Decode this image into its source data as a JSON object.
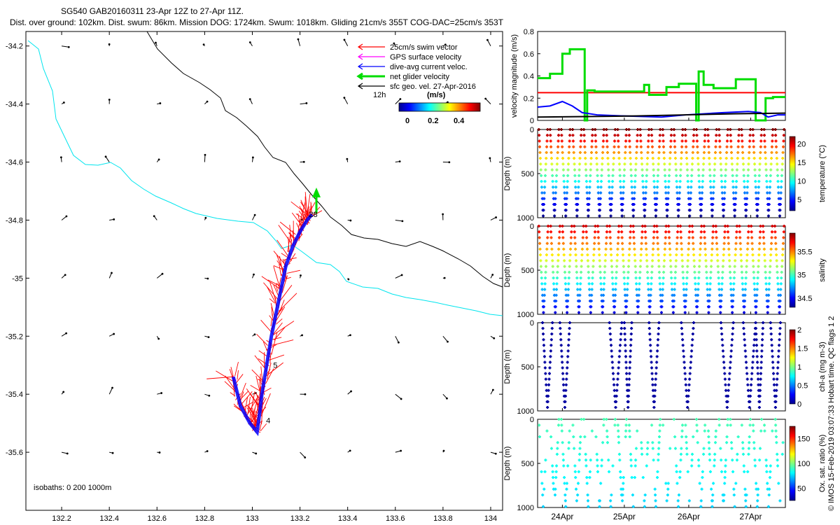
{
  "header": {
    "title": "SG540 GAB20160311 23-Apr 12Z to 27-Apr 11Z.",
    "subtitle": "Dist. over ground: 102km. Dist. swum: 86km. Mission DOG: 1724km. Swum: 1018km. Gliding 21cm/s 355T COG-DAC=25cm/s 353T"
  },
  "credit": "© IMOS 15-Feb-2019 03:07:33 Hobart time. QC flags 1  2",
  "colors": {
    "swim": "#ff0000",
    "gps": "#ff00ff",
    "dac": "#0000ff",
    "net": "#00dd00",
    "sfc": "#000000",
    "isobath200": "#000000",
    "isobath1000": "#00e5ee"
  },
  "chart_data": [
    {
      "type": "map",
      "xticks": [
        "132.2",
        "132.4",
        "132.6",
        "132.8",
        "133",
        "133.2",
        "133.4",
        "133.6",
        "133.8",
        "134"
      ],
      "yticks": [
        "-34.2",
        "-34.4",
        "-34.6",
        "-34.8",
        "-35",
        "-35.2",
        "-35.4",
        "-35.6"
      ],
      "xlim": [
        132.05,
        134.05
      ],
      "ylim": [
        -35.8,
        -34.15
      ],
      "legend": [
        {
          "label": "25cm/s swim vector",
          "color": "#ff0000"
        },
        {
          "label": "GPS surface velocity",
          "color": "#ff00ff"
        },
        {
          "label": "dive-avg current veloc.",
          "color": "#0000ff"
        },
        {
          "label": "net glider velocity",
          "color": "#00dd00"
        },
        {
          "label": "sfc geo. vel. 27-Apr-2016",
          "color": "#000000"
        }
      ],
      "legend_extra": "12h",
      "colorbar": {
        "title": "(m/s)",
        "ticks": [
          "0",
          "0.2",
          "0.4"
        ]
      },
      "isobath_note": "isobaths: 0   200  1000m",
      "track_labels": [
        {
          "text": "28",
          "lon": 133.22,
          "lat": -34.78
        },
        {
          "text": "5",
          "lon": 133.07,
          "lat": -35.3
        },
        {
          "text": "4",
          "lon": 133.04,
          "lat": -35.49
        }
      ],
      "track": [
        [
          132.92,
          -35.34
        ],
        [
          132.95,
          -35.44
        ],
        [
          132.99,
          -35.5
        ],
        [
          133.02,
          -35.53
        ],
        [
          133.03,
          -35.47
        ],
        [
          133.04,
          -35.4
        ],
        [
          133.06,
          -35.3
        ],
        [
          133.08,
          -35.2
        ],
        [
          133.1,
          -35.12
        ],
        [
          133.12,
          -35.04
        ],
        [
          133.14,
          -34.96
        ],
        [
          133.17,
          -34.89
        ],
        [
          133.2,
          -34.84
        ],
        [
          133.23,
          -34.8
        ],
        [
          133.25,
          -34.78
        ]
      ]
    },
    {
      "type": "line",
      "ylabel": "velocity magnitude (m/s)",
      "yticks": [
        "0",
        "0.2",
        "0.4",
        "0.6",
        "0.8"
      ],
      "ylim": [
        0,
        0.8
      ],
      "threshold": 0.25,
      "series": [
        {
          "color": "#00dd00",
          "x": [
            0,
            0.05,
            0.05,
            0.1,
            0.1,
            0.13,
            0.13,
            0.19,
            0.19,
            0.2,
            0.2,
            0.23,
            0.23,
            0.43,
            0.43,
            0.45,
            0.45,
            0.52,
            0.52,
            0.57,
            0.57,
            0.64,
            0.64,
            0.65,
            0.65,
            0.67,
            0.67,
            0.71,
            0.71,
            0.8,
            0.8,
            0.88,
            0.88,
            0.92,
            0.92,
            0.95,
            0.95,
            1
          ],
          "y": [
            0.38,
            0.38,
            0.42,
            0.42,
            0.6,
            0.6,
            0.64,
            0.64,
            0.0,
            0.0,
            0.27,
            0.27,
            0.26,
            0.26,
            0.32,
            0.32,
            0.23,
            0.23,
            0.3,
            0.3,
            0.33,
            0.33,
            0.0,
            0.0,
            0.44,
            0.44,
            0.32,
            0.32,
            0.29,
            0.29,
            0.37,
            0.37,
            0.0,
            0.0,
            0.2,
            0.2,
            0.21,
            0.21
          ]
        },
        {
          "color": "#0000ff",
          "x": [
            0,
            0.05,
            0.1,
            0.14,
            0.18,
            0.24,
            0.35,
            0.5,
            0.6,
            0.75,
            0.85,
            0.9,
            0.93,
            0.97,
            1
          ],
          "y": [
            0.12,
            0.13,
            0.17,
            0.13,
            0.07,
            0.05,
            0.04,
            0.03,
            0.05,
            0.07,
            0.08,
            0.07,
            0.03,
            0.05,
            0.05
          ]
        },
        {
          "color": "#000000",
          "x": [
            0,
            0.2,
            0.4,
            0.6,
            0.8,
            1
          ],
          "y": [
            0.03,
            0.035,
            0.04,
            0.05,
            0.06,
            0.065
          ]
        }
      ]
    },
    {
      "type": "scatter",
      "ylabel": "Depth (m)",
      "yticks": [
        "0",
        "500",
        "1000"
      ],
      "ylim": [
        1000,
        0
      ],
      "cbar_label": "temperature (°C)",
      "cbar_ticks": [
        "5",
        "10",
        "15",
        "20"
      ],
      "cbar_range": [
        2,
        22
      ],
      "n_dives": 22,
      "max_depth": 980
    },
    {
      "type": "scatter",
      "ylabel": "Depth (m)",
      "yticks": [
        "0",
        "500",
        "1000"
      ],
      "ylim": [
        1000,
        0
      ],
      "cbar_label": "salinity",
      "cbar_ticks": [
        "34.5",
        "35",
        "35.5"
      ],
      "cbar_range": [
        34.3,
        35.9
      ],
      "n_dives": 21,
      "max_depth": 980
    },
    {
      "type": "scatter",
      "ylabel": "Depth (m)",
      "yticks": [
        "0",
        "500",
        "1000"
      ],
      "ylim": [
        1000,
        0
      ],
      "cbar_label": "chl-a (mg m-3)",
      "cbar_ticks": [
        "0",
        "0.5",
        "1",
        "1.5",
        "2"
      ],
      "cbar_range": [
        0,
        2
      ],
      "dives": [
        [
          0.02,
          0.06
        ],
        [
          0.09,
          0.13
        ],
        [
          0.29,
          0.34
        ],
        [
          0.35,
          0.38
        ],
        [
          0.45,
          0.49
        ],
        [
          0.58,
          0.63
        ],
        [
          0.74,
          0.79
        ],
        [
          0.83,
          0.88
        ],
        [
          0.88,
          0.91
        ],
        [
          0.94,
          0.98
        ]
      ]
    },
    {
      "type": "scatter",
      "ylabel": "Depth (m)",
      "yticks": [
        "0",
        "500",
        "1000"
      ],
      "ylim": [
        1000,
        0
      ],
      "cbar_label": "Ox. sat. ratio (%)",
      "cbar_ticks": [
        "50",
        "100",
        "150"
      ],
      "cbar_range": [
        25,
        175
      ],
      "xticks": [
        "24Apr",
        "25Apr",
        "26Apr",
        "27Apr"
      ],
      "xtick_pos": [
        0.1,
        0.35,
        0.61,
        0.86
      ],
      "n_dives": 22
    }
  ]
}
